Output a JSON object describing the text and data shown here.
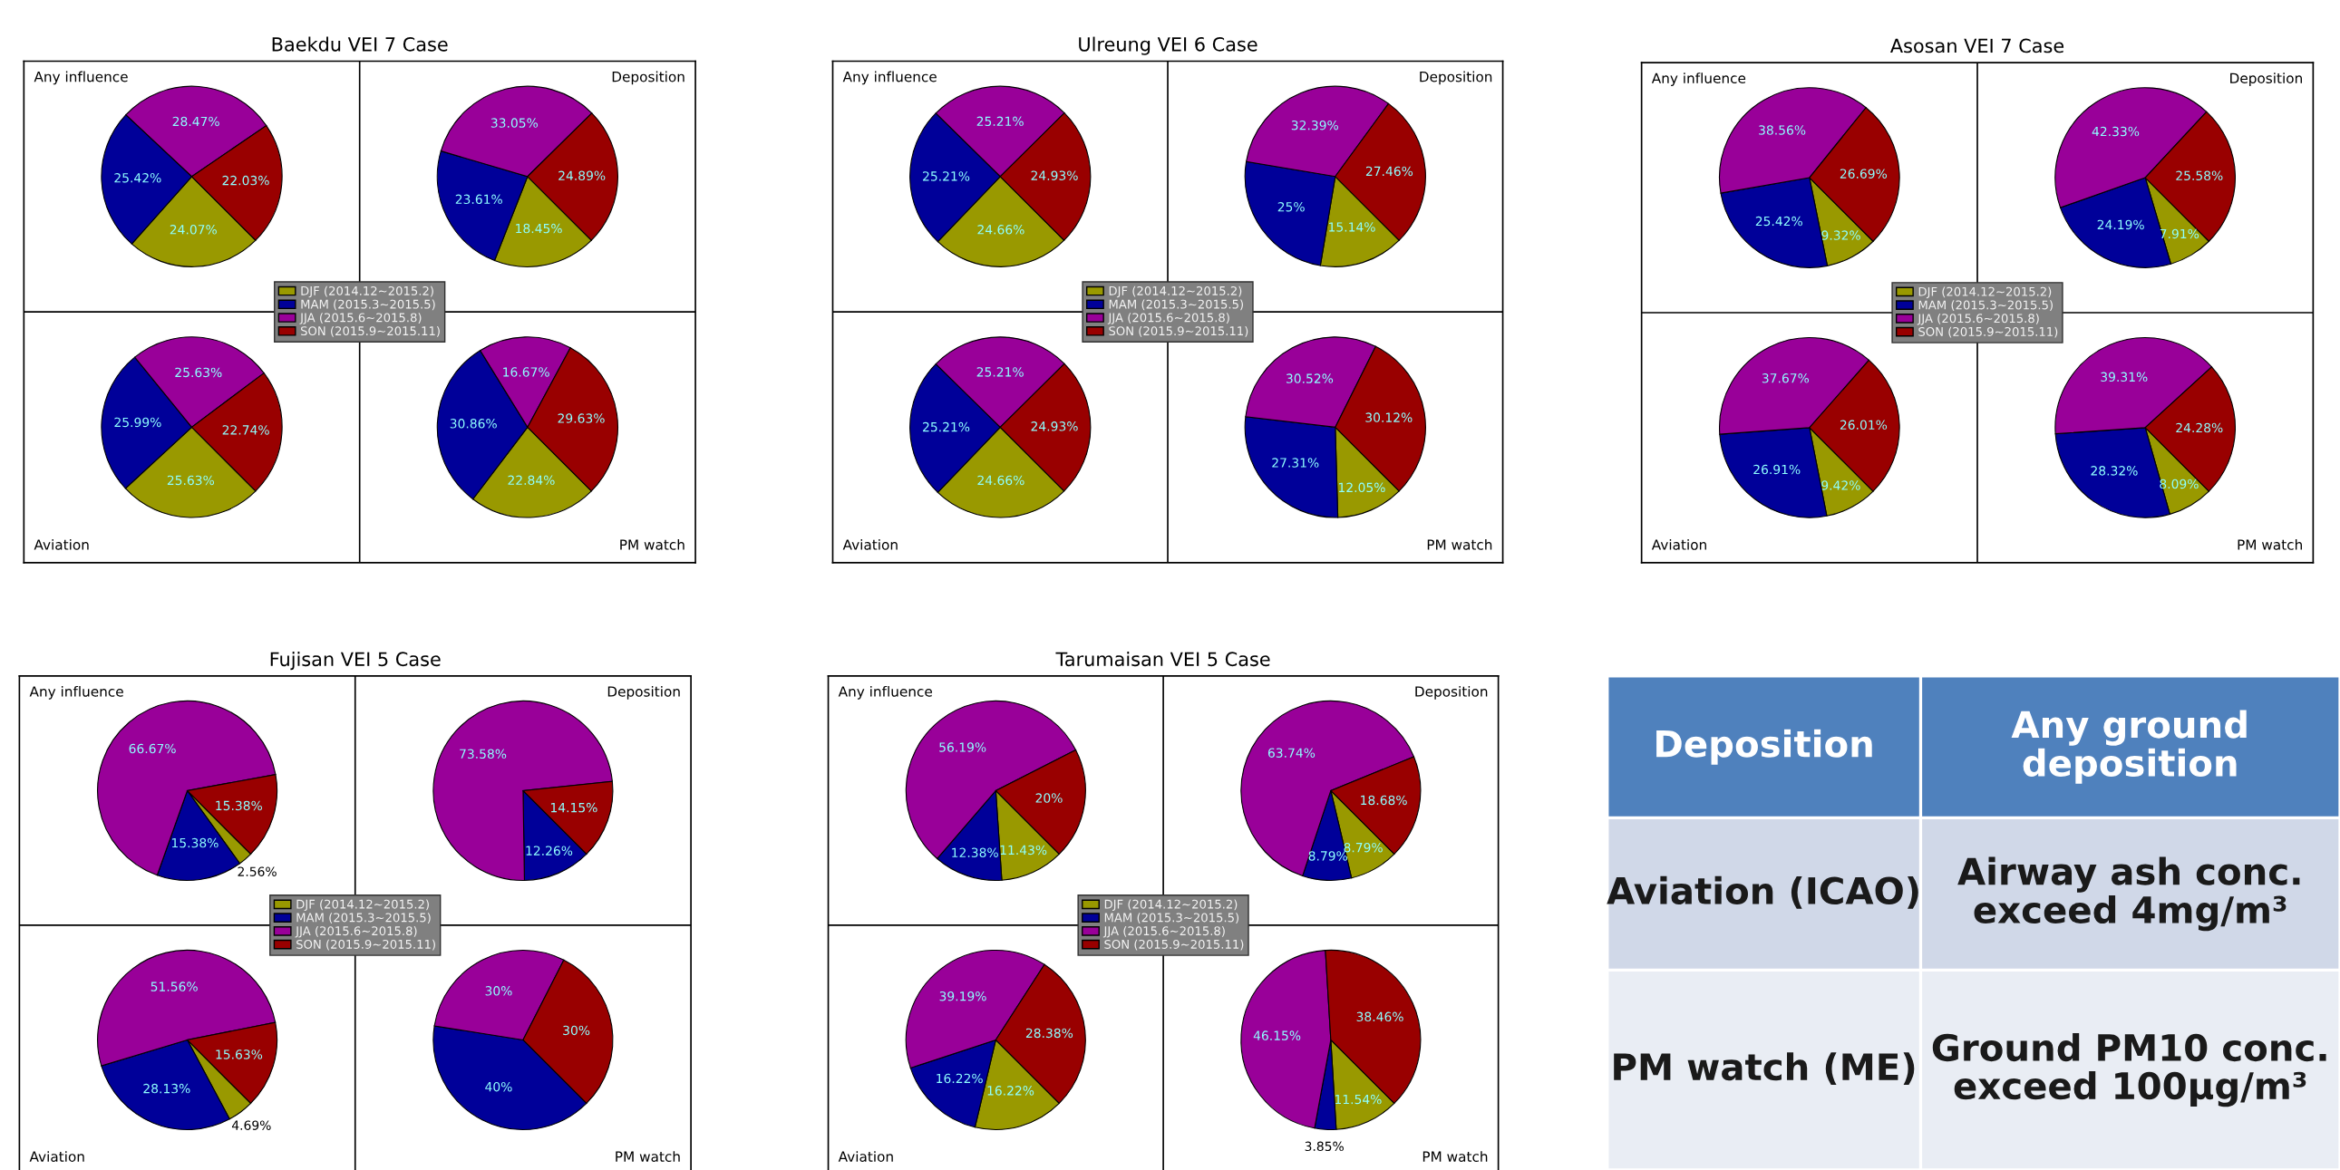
{
  "chart_data": [
    {
      "type": "pie",
      "title": "Baekdu VEI 7 Case",
      "legend": "center",
      "categories": [
        "DJF (2014.12~2015.2)",
        "MAM (2015.3~2015.5)",
        "JJA (2015.6~2015.8)",
        "SON (2015.9~2015.11)"
      ],
      "colors": [
        "#999900",
        "#000099",
        "#990099",
        "#990000"
      ],
      "series": [
        {
          "name": "Any influence",
          "values": [
            24.07,
            25.42,
            28.47,
            22.03
          ],
          "value_labels": [
            "24.07%",
            "25.42%",
            "28.47%",
            "22.03%"
          ]
        },
        {
          "name": "Deposition",
          "values": [
            18.45,
            23.61,
            33.05,
            24.89
          ],
          "value_labels": [
            "18.45%",
            "23.61%",
            "33.05%",
            "24.89%"
          ]
        },
        {
          "name": "Aviation",
          "values": [
            25.63,
            25.99,
            25.63,
            22.74
          ],
          "value_labels": [
            "25.63%",
            "25.99%",
            "25.63%",
            "22.74%"
          ]
        },
        {
          "name": "PM watch",
          "values": [
            22.84,
            30.86,
            16.67,
            29.63
          ],
          "value_labels": [
            "22.84%",
            "30.86%",
            "16.67%",
            "29.63%"
          ]
        }
      ]
    },
    {
      "type": "pie",
      "title": "Ulreung VEI 6 Case",
      "legend": "center",
      "categories": [
        "DJF (2014.12~2015.2)",
        "MAM (2015.3~2015.5)",
        "JJA (2015.6~2015.8)",
        "SON (2015.9~2015.11)"
      ],
      "colors": [
        "#999900",
        "#000099",
        "#990099",
        "#990000"
      ],
      "series": [
        {
          "name": "Any influence",
          "values": [
            24.66,
            25.21,
            25.21,
            24.93
          ],
          "value_labels": [
            "24.66%",
            "25.21%",
            "25.21%",
            "24.93%"
          ]
        },
        {
          "name": "Deposition",
          "values": [
            15.14,
            25,
            32.39,
            27.46
          ],
          "value_labels": [
            "15.14%",
            "25%",
            "32.39%",
            "27.46%"
          ]
        },
        {
          "name": "Aviation",
          "values": [
            24.66,
            25.21,
            25.21,
            24.93
          ],
          "value_labels": [
            "24.66%",
            "25.21%",
            "25.21%",
            "24.93%"
          ]
        },
        {
          "name": "PM watch",
          "values": [
            12.05,
            27.31,
            30.52,
            30.12
          ],
          "value_labels": [
            "12.05%",
            "27.31%",
            "30.52%",
            "30.12%"
          ]
        }
      ]
    },
    {
      "type": "pie",
      "title": "Asosan VEI 7 Case",
      "legend": "center",
      "categories": [
        "DJF (2014.12~2015.2)",
        "MAM (2015.3~2015.5)",
        "JJA (2015.6~2015.8)",
        "SON (2015.9~2015.11)"
      ],
      "colors": [
        "#999900",
        "#000099",
        "#990099",
        "#990000"
      ],
      "series": [
        {
          "name": "Any influence",
          "values": [
            9.32,
            25.42,
            38.56,
            26.69
          ],
          "value_labels": [
            "9.32%",
            "25.42%",
            "38.56%",
            "26.69%"
          ]
        },
        {
          "name": "Deposition",
          "values": [
            7.91,
            24.19,
            42.33,
            25.58
          ],
          "value_labels": [
            "7.91%",
            "24.19%",
            "42.33%",
            "25.58%"
          ]
        },
        {
          "name": "Aviation",
          "values": [
            9.42,
            26.91,
            37.67,
            26.01
          ],
          "value_labels": [
            "9.42%",
            "26.91%",
            "37.67%",
            "26.01%"
          ]
        },
        {
          "name": "PM watch",
          "values": [
            8.09,
            28.32,
            39.31,
            24.28
          ],
          "value_labels": [
            "8.09%",
            "28.32%",
            "39.31%",
            "24.28%"
          ]
        }
      ]
    },
    {
      "type": "pie",
      "title": "Fujisan VEI 5 Case",
      "legend": "center",
      "categories": [
        "DJF (2014.12~2015.2)",
        "MAM (2015.3~2015.5)",
        "JJA (2015.6~2015.8)",
        "SON (2015.9~2015.11)"
      ],
      "colors": [
        "#999900",
        "#000099",
        "#990099",
        "#990000"
      ],
      "series": [
        {
          "name": "Any influence",
          "values": [
            2.56,
            15.38,
            66.67,
            15.38
          ],
          "value_labels": [
            "2.56%",
            "15.38%",
            "66.67%",
            "15.38%"
          ]
        },
        {
          "name": "Deposition",
          "values": [
            0,
            12.26,
            73.58,
            14.15
          ],
          "value_labels": [
            null,
            "12.26%",
            "73.58%",
            "14.15%"
          ]
        },
        {
          "name": "Aviation",
          "values": [
            4.69,
            28.13,
            51.56,
            15.63
          ],
          "value_labels": [
            "4.69%",
            "28.13%",
            "51.56%",
            "15.63%"
          ]
        },
        {
          "name": "PM watch",
          "values": [
            0,
            40,
            30,
            30
          ],
          "value_labels": [
            null,
            "40%",
            "30%",
            "30%"
          ]
        }
      ]
    },
    {
      "type": "pie",
      "title": "Tarumaisan VEI 5 Case",
      "legend": "center",
      "categories": [
        "DJF (2014.12~2015.2)",
        "MAM (2015.3~2015.5)",
        "JJA (2015.6~2015.8)",
        "SON (2015.9~2015.11)"
      ],
      "colors": [
        "#999900",
        "#000099",
        "#990099",
        "#990000"
      ],
      "series": [
        {
          "name": "Any influence",
          "values": [
            11.43,
            12.38,
            56.19,
            20
          ],
          "value_labels": [
            "11.43%",
            "12.38%",
            "56.19%",
            "20%"
          ]
        },
        {
          "name": "Deposition",
          "values": [
            8.79,
            8.79,
            63.74,
            18.68
          ],
          "value_labels": [
            "8.79%",
            "8.79%",
            "63.74%",
            "18.68%"
          ]
        },
        {
          "name": "Aviation",
          "values": [
            16.22,
            16.22,
            39.19,
            28.38
          ],
          "value_labels": [
            "16.22%",
            "16.22%",
            "39.19%",
            "28.38%"
          ]
        },
        {
          "name": "PM watch",
          "values": [
            11.54,
            3.85,
            46.15,
            38.46
          ],
          "value_labels": [
            "11.54%",
            "3.85%",
            "46.15%",
            "38.46%"
          ]
        }
      ]
    },
    {
      "type": "other",
      "annotations": [
        "Deposition",
        "Any ground deposition",
        "Aviation (ICAO)",
        "Airway ash conc. exceed 4mg/m³",
        "PM watch (ME)",
        "Ground PM10 conc. exceed 100μg/m³"
      ],
      "colors": [
        "#4f81bd",
        "#d0d8e8",
        "#e9edf4"
      ]
    }
  ]
}
